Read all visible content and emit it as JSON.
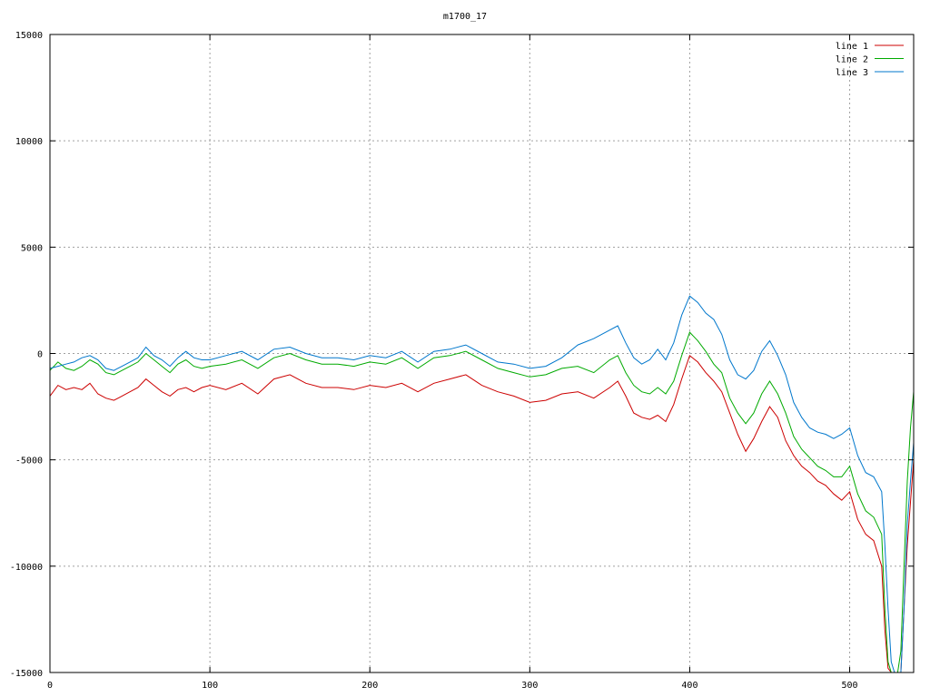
{
  "chart_data": {
    "type": "line",
    "title": "m1700_17",
    "xlabel": "",
    "ylabel": "",
    "xlim": [
      0,
      540
    ],
    "ylim": [
      -15000,
      15000
    ],
    "xticks": [
      0,
      100,
      200,
      300,
      400,
      500
    ],
    "yticks": [
      -15000,
      -10000,
      -5000,
      0,
      5000,
      10000,
      15000
    ],
    "grid": true,
    "legend_position": "top-right",
    "series": [
      {
        "name": "line 1",
        "color": "#cc0000",
        "x": [
          0,
          5,
          10,
          15,
          20,
          25,
          30,
          35,
          40,
          45,
          50,
          55,
          60,
          65,
          70,
          75,
          80,
          85,
          90,
          95,
          100,
          110,
          120,
          130,
          140,
          150,
          160,
          170,
          180,
          190,
          200,
          210,
          220,
          230,
          240,
          250,
          260,
          270,
          280,
          290,
          300,
          310,
          320,
          330,
          340,
          350,
          355,
          360,
          365,
          370,
          375,
          380,
          385,
          390,
          395,
          400,
          405,
          410,
          415,
          420,
          425,
          430,
          435,
          440,
          445,
          450,
          455,
          460,
          465,
          470,
          475,
          480,
          485,
          490,
          495,
          500,
          505,
          510,
          515,
          520,
          522,
          524,
          526,
          528,
          530,
          532,
          534,
          536,
          538,
          540
        ],
        "y": [
          -2000,
          -1500,
          -1700,
          -1600,
          -1700,
          -1400,
          -1900,
          -2100,
          -2200,
          -2000,
          -1800,
          -1600,
          -1200,
          -1500,
          -1800,
          -2000,
          -1700,
          -1600,
          -1800,
          -1600,
          -1500,
          -1700,
          -1400,
          -1900,
          -1200,
          -1000,
          -1400,
          -1600,
          -1600,
          -1700,
          -1500,
          -1600,
          -1400,
          -1800,
          -1400,
          -1200,
          -1000,
          -1500,
          -1800,
          -2000,
          -2300,
          -2200,
          -1900,
          -1800,
          -2100,
          -1600,
          -1300,
          -2000,
          -2800,
          -3000,
          -3100,
          -2900,
          -3200,
          -2400,
          -1200,
          -100,
          -400,
          -900,
          -1300,
          -1800,
          -2800,
          -3800,
          -4600,
          -4000,
          -3200,
          -2500,
          -3000,
          -4100,
          -4800,
          -5300,
          -5600,
          -6000,
          -6200,
          -6600,
          -6900,
          -6500,
          -7800,
          -8500,
          -8800,
          -10000,
          -13000,
          -14800,
          -15000,
          -15000,
          -15000,
          -15000,
          -12000,
          -9000,
          -7000,
          -5000
        ]
      },
      {
        "name": "line 2",
        "color": "#00aa00",
        "x": [
          0,
          5,
          10,
          15,
          20,
          25,
          30,
          35,
          40,
          45,
          50,
          55,
          60,
          65,
          70,
          75,
          80,
          85,
          90,
          95,
          100,
          110,
          120,
          130,
          140,
          150,
          160,
          170,
          180,
          190,
          200,
          210,
          220,
          230,
          240,
          250,
          260,
          270,
          280,
          290,
          300,
          310,
          320,
          330,
          340,
          350,
          355,
          360,
          365,
          370,
          375,
          380,
          385,
          390,
          395,
          400,
          405,
          410,
          415,
          420,
          425,
          430,
          435,
          440,
          445,
          450,
          455,
          460,
          465,
          470,
          475,
          480,
          485,
          490,
          495,
          500,
          505,
          510,
          515,
          520,
          522,
          524,
          526,
          528,
          530,
          532,
          534,
          536,
          538,
          540
        ],
        "y": [
          -800,
          -400,
          -700,
          -800,
          -600,
          -300,
          -500,
          -900,
          -1000,
          -800,
          -600,
          -400,
          0,
          -300,
          -600,
          -900,
          -500,
          -300,
          -600,
          -700,
          -600,
          -500,
          -300,
          -700,
          -200,
          0,
          -300,
          -500,
          -500,
          -600,
          -400,
          -500,
          -200,
          -700,
          -200,
          -100,
          100,
          -300,
          -700,
          -900,
          -1100,
          -1000,
          -700,
          -600,
          -900,
          -300,
          -100,
          -900,
          -1500,
          -1800,
          -1900,
          -1600,
          -1900,
          -1300,
          -100,
          1000,
          600,
          100,
          -500,
          -900,
          -2100,
          -2800,
          -3300,
          -2800,
          -1900,
          -1300,
          -1900,
          -2800,
          -3900,
          -4500,
          -4900,
          -5300,
          -5500,
          -5800,
          -5800,
          -5300,
          -6600,
          -7400,
          -7700,
          -8500,
          -12000,
          -14500,
          -15000,
          -15000,
          -15000,
          -14000,
          -10000,
          -6000,
          -3500,
          -1800
        ]
      },
      {
        "name": "line 3",
        "color": "#0077cc",
        "x": [
          0,
          5,
          10,
          15,
          20,
          25,
          30,
          35,
          40,
          45,
          50,
          55,
          60,
          65,
          70,
          75,
          80,
          85,
          90,
          95,
          100,
          110,
          120,
          130,
          140,
          150,
          160,
          170,
          180,
          190,
          200,
          210,
          220,
          230,
          240,
          250,
          260,
          270,
          280,
          290,
          300,
          310,
          320,
          330,
          340,
          350,
          355,
          360,
          365,
          370,
          375,
          380,
          385,
          390,
          395,
          400,
          405,
          410,
          415,
          420,
          425,
          430,
          435,
          440,
          445,
          450,
          455,
          460,
          465,
          470,
          475,
          480,
          485,
          490,
          495,
          500,
          505,
          510,
          515,
          520,
          522,
          524,
          526,
          528,
          530,
          532,
          534,
          536,
          538,
          540
        ],
        "y": [
          -700,
          -600,
          -500,
          -400,
          -200,
          -100,
          -300,
          -700,
          -800,
          -600,
          -400,
          -200,
          300,
          -100,
          -300,
          -600,
          -200,
          100,
          -200,
          -300,
          -300,
          -100,
          100,
          -300,
          200,
          300,
          0,
          -200,
          -200,
          -300,
          -100,
          -200,
          100,
          -400,
          100,
          200,
          400,
          0,
          -400,
          -500,
          -700,
          -600,
          -200,
          400,
          700,
          1100,
          1300,
          500,
          -200,
          -500,
          -300,
          200,
          -300,
          500,
          1800,
          2700,
          2400,
          1900,
          1600,
          900,
          -300,
          -1000,
          -1200,
          -800,
          100,
          600,
          -100,
          -1000,
          -2300,
          -3000,
          -3500,
          -3700,
          -3800,
          -4000,
          -3800,
          -3500,
          -4800,
          -5600,
          -5800,
          -6500,
          -9000,
          -12000,
          -14500,
          -15000,
          -15000,
          -15000,
          -12000,
          -8000,
          -6000,
          -4200
        ]
      }
    ]
  }
}
